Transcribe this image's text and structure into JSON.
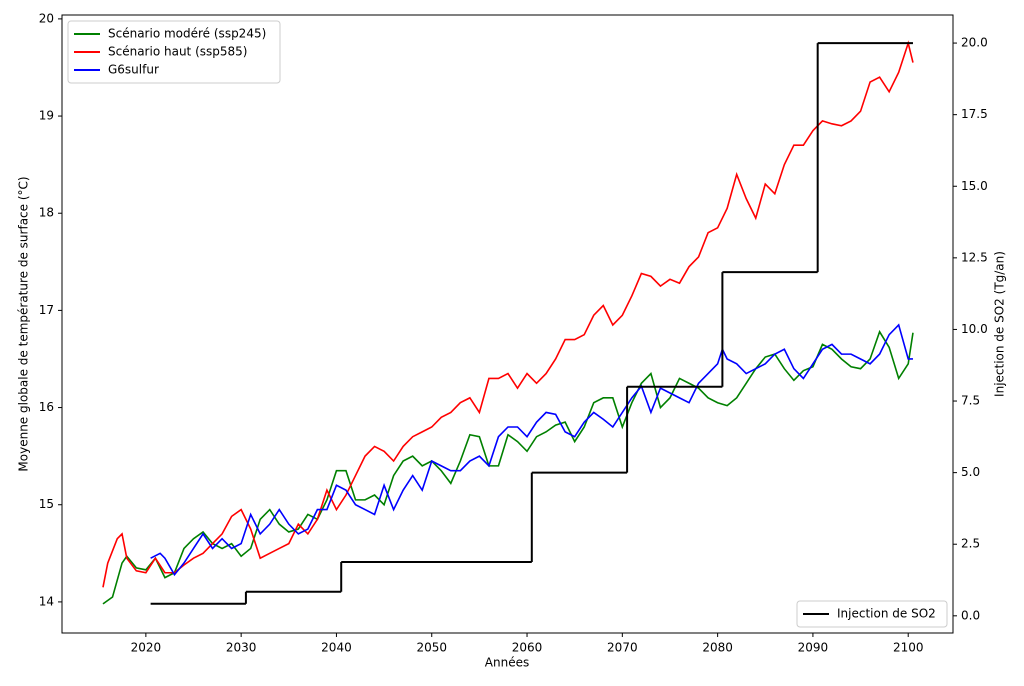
{
  "chart_data": {
    "type": "line",
    "xlabel": "Années",
    "ylabel": "Moyenne globale de température de surface (°C)",
    "y2label": "Injection de SO2 (Tg/an)",
    "xlim": [
      2011.2,
      2104.7
    ],
    "ylim": [
      13.68,
      20.04
    ],
    "y2lim": [
      -0.6,
      20.98
    ],
    "xticks": [
      2020,
      2030,
      2040,
      2050,
      2060,
      2070,
      2080,
      2090,
      2100
    ],
    "yticks": [
      14,
      15,
      16,
      17,
      18,
      19,
      20
    ],
    "y2ticks": [
      {
        "value": 0,
        "label": "0.0"
      },
      2.5,
      {
        "value": 5,
        "label": "5.0"
      },
      7.5,
      {
        "value": 10,
        "label": "10.0"
      },
      12.5,
      {
        "value": 15,
        "label": "15.0"
      },
      17.5,
      {
        "value": 20,
        "label": "20.0"
      }
    ],
    "legend_loc": "upper left",
    "y2_legend_loc": "lower right",
    "series": [
      {
        "name": "Scénario modéré (ssp245)",
        "color": "#008000",
        "x": [
          2015.5,
          2016.5,
          2017.5,
          2018,
          2019,
          2020,
          2021,
          2022,
          2023,
          2024,
          2025,
          2026,
          2027,
          2028,
          2029,
          2030,
          2031,
          2032,
          2033,
          2034,
          2035,
          2036,
          2037,
          2038,
          2039,
          2040,
          2041,
          2042,
          2043,
          2044,
          2045,
          2046,
          2047,
          2048,
          2049,
          2050,
          2051,
          2052,
          2053,
          2054,
          2055,
          2056,
          2057,
          2058,
          2059,
          2060,
          2061,
          2062,
          2063,
          2064,
          2065,
          2066,
          2067,
          2068,
          2069,
          2070,
          2071,
          2072,
          2073,
          2074,
          2075,
          2076,
          2077,
          2078,
          2079,
          2080,
          2081,
          2082,
          2083,
          2084,
          2085,
          2086,
          2087,
          2088,
          2089,
          2090,
          2091,
          2092,
          2093,
          2094,
          2095,
          2096,
          2097,
          2098,
          2099,
          2100,
          2100.5
        ],
        "values": [
          13.98,
          14.05,
          14.4,
          14.47,
          14.35,
          14.33,
          14.45,
          14.25,
          14.3,
          14.55,
          14.65,
          14.72,
          14.6,
          14.55,
          14.6,
          14.47,
          14.55,
          14.85,
          14.95,
          14.8,
          14.72,
          14.75,
          14.9,
          14.85,
          15.05,
          15.35,
          15.35,
          15.05,
          15.05,
          15.1,
          15.0,
          15.3,
          15.45,
          15.5,
          15.4,
          15.45,
          15.35,
          15.22,
          15.45,
          15.72,
          15.7,
          15.4,
          15.4,
          15.72,
          15.65,
          15.55,
          15.7,
          15.75,
          15.82,
          15.85,
          15.65,
          15.8,
          16.05,
          16.1,
          16.1,
          15.8,
          16.05,
          16.25,
          16.35,
          16.0,
          16.1,
          16.3,
          16.25,
          16.2,
          16.1,
          16.05,
          16.02,
          16.1,
          16.25,
          16.4,
          16.52,
          16.55,
          16.4,
          16.28,
          16.38,
          16.42,
          16.65,
          16.6,
          16.5,
          16.42,
          16.4,
          16.5,
          16.78,
          16.62,
          16.3,
          16.45,
          16.77
        ]
      },
      {
        "name": "Scénario haut (ssp585)",
        "color": "#ff0000",
        "x": [
          2015.5,
          2016,
          2017,
          2017.5,
          2018,
          2019,
          2020,
          2021,
          2022,
          2023,
          2024,
          2025,
          2026,
          2027,
          2028,
          2029,
          2030,
          2031,
          2032,
          2033,
          2034,
          2035,
          2036,
          2037,
          2038,
          2039,
          2040,
          2041,
          2042,
          2043,
          2044,
          2045,
          2046,
          2047,
          2048,
          2049,
          2050,
          2051,
          2052,
          2053,
          2054,
          2055,
          2056,
          2057,
          2058,
          2059,
          2060,
          2061,
          2062,
          2063,
          2064,
          2065,
          2066,
          2067,
          2068,
          2069,
          2070,
          2071,
          2072,
          2073,
          2074,
          2075,
          2076,
          2077,
          2078,
          2079,
          2080,
          2081,
          2082,
          2083,
          2084,
          2085,
          2086,
          2087,
          2088,
          2089,
          2090,
          2091,
          2092,
          2093,
          2094,
          2095,
          2096,
          2097,
          2098,
          2099,
          2100,
          2100.5
        ],
        "values": [
          14.15,
          14.4,
          14.65,
          14.7,
          14.45,
          14.32,
          14.3,
          14.45,
          14.3,
          14.3,
          14.38,
          14.45,
          14.5,
          14.6,
          14.7,
          14.88,
          14.95,
          14.75,
          14.45,
          14.5,
          14.55,
          14.6,
          14.8,
          14.7,
          14.85,
          15.15,
          14.95,
          15.1,
          15.3,
          15.5,
          15.6,
          15.55,
          15.45,
          15.6,
          15.7,
          15.75,
          15.8,
          15.9,
          15.95,
          16.05,
          16.1,
          15.95,
          16.3,
          16.3,
          16.35,
          16.2,
          16.35,
          16.25,
          16.35,
          16.5,
          16.7,
          16.7,
          16.75,
          16.95,
          17.05,
          16.85,
          16.95,
          17.15,
          17.38,
          17.35,
          17.25,
          17.32,
          17.28,
          17.45,
          17.55,
          17.8,
          17.85,
          18.05,
          18.4,
          18.15,
          17.95,
          18.3,
          18.2,
          18.5,
          18.7,
          18.7,
          18.85,
          18.95,
          18.92,
          18.9,
          18.95,
          19.05,
          19.35,
          19.4,
          19.25,
          19.45,
          19.75,
          19.55
        ]
      },
      {
        "name": "G6sulfur",
        "color": "#0000ff",
        "x": [
          2020.5,
          2021.5,
          2022,
          2023,
          2024,
          2025,
          2026,
          2027,
          2028,
          2029,
          2030,
          2031,
          2032,
          2033,
          2034,
          2035,
          2036,
          2037,
          2038,
          2039,
          2040,
          2041,
          2042,
          2043,
          2044,
          2045,
          2046,
          2047,
          2048,
          2049,
          2050,
          2051,
          2052,
          2053,
          2054,
          2055,
          2056,
          2057,
          2058,
          2059,
          2060,
          2061,
          2062,
          2063,
          2064,
          2065,
          2066,
          2067,
          2068,
          2069,
          2070,
          2071,
          2072,
          2073,
          2074,
          2075,
          2076,
          2077,
          2078,
          2079,
          2080,
          2080.5,
          2081,
          2082,
          2083,
          2084,
          2085,
          2086,
          2087,
          2088,
          2089,
          2090,
          2091,
          2092,
          2093,
          2094,
          2095,
          2096,
          2097,
          2098,
          2099,
          2100,
          2100.5
        ],
        "values": [
          14.45,
          14.5,
          14.45,
          14.28,
          14.4,
          14.55,
          14.7,
          14.55,
          14.65,
          14.55,
          14.6,
          14.9,
          14.7,
          14.8,
          14.95,
          14.8,
          14.7,
          14.75,
          14.95,
          14.95,
          15.2,
          15.15,
          15.0,
          14.95,
          14.9,
          15.2,
          14.95,
          15.15,
          15.3,
          15.15,
          15.45,
          15.4,
          15.35,
          15.35,
          15.45,
          15.5,
          15.4,
          15.7,
          15.8,
          15.8,
          15.7,
          15.85,
          15.95,
          15.93,
          15.75,
          15.7,
          15.85,
          15.95,
          15.88,
          15.8,
          15.95,
          16.1,
          16.22,
          15.95,
          16.2,
          16.15,
          16.1,
          16.05,
          16.25,
          16.35,
          16.45,
          16.6,
          16.5,
          16.45,
          16.35,
          16.4,
          16.45,
          16.55,
          16.6,
          16.4,
          16.3,
          16.45,
          16.6,
          16.65,
          16.55,
          16.55,
          16.5,
          16.45,
          16.55,
          16.75,
          16.85,
          16.5,
          16.5
        ]
      },
      {
        "name": "Injection de SO2",
        "color": "#000000",
        "axis": "y2",
        "step": "post",
        "x": [
          2020.5,
          2030.5,
          2040.5,
          2060.5,
          2070.5,
          2080.5,
          2090.5,
          2100.5
        ],
        "values": [
          0.42,
          0.84,
          1.88,
          5.0,
          8.0,
          12.0,
          20.0,
          20.0
        ]
      }
    ]
  }
}
